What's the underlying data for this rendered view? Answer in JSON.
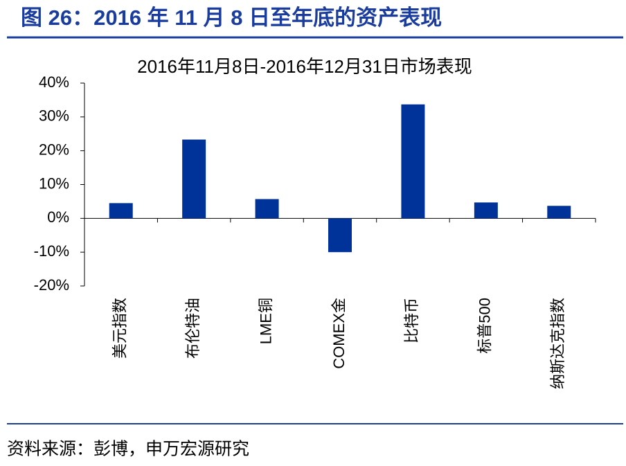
{
  "header": {
    "title": "图 26：2016 年 11 月 8 日至年底的资产表现"
  },
  "footer": {
    "source": "资料来源：彭博，申万宏源研究"
  },
  "chart_data": {
    "type": "bar",
    "title": "2016年11月8日-2016年12月31日市场表现",
    "categories": [
      "美元指数",
      "布伦特油",
      "LME铜",
      "COMEX金",
      "比特币",
      "标普500",
      "纳斯达克指数"
    ],
    "values": [
      4.5,
      23.3,
      5.7,
      -10.0,
      33.7,
      4.7,
      3.7
    ],
    "color": "#00339a",
    "ylim": [
      -20,
      40
    ],
    "yticks": [
      {
        "value": -20,
        "label": "-20%"
      },
      {
        "value": -10,
        "label": "-10%"
      },
      {
        "value": 0,
        "label": "0%"
      },
      {
        "value": 10,
        "label": "10%"
      },
      {
        "value": 20,
        "label": "20%"
      },
      {
        "value": 30,
        "label": "30%"
      },
      {
        "value": 40,
        "label": "40%"
      }
    ],
    "grid": false
  }
}
